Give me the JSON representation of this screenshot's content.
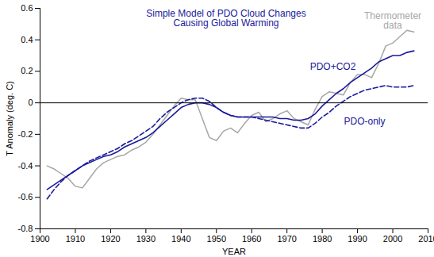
{
  "chart_data": {
    "type": "line",
    "title": "Simple Model of PDO Cloud Changes\nCausing Global Warming",
    "x_label": "YEAR",
    "y_label": "T Anomaly (deg. C)",
    "x": [
      1902,
      1904,
      1906,
      1908,
      1910,
      1912,
      1914,
      1916,
      1918,
      1920,
      1922,
      1924,
      1926,
      1928,
      1930,
      1932,
      1934,
      1936,
      1938,
      1940,
      1942,
      1944,
      1946,
      1948,
      1950,
      1952,
      1954,
      1956,
      1958,
      1960,
      1962,
      1964,
      1966,
      1968,
      1970,
      1972,
      1974,
      1976,
      1978,
      1980,
      1982,
      1984,
      1986,
      1988,
      1990,
      1992,
      1994,
      1996,
      1998,
      2000,
      2002,
      2004,
      2006
    ],
    "series": [
      {
        "name": "Thermometer data",
        "color": "#a6a6a6",
        "line_style": "solid",
        "values": [
          -0.4,
          -0.42,
          -0.45,
          -0.48,
          -0.53,
          -0.54,
          -0.48,
          -0.42,
          -0.38,
          -0.36,
          -0.34,
          -0.33,
          -0.3,
          -0.28,
          -0.25,
          -0.2,
          -0.14,
          -0.08,
          -0.02,
          0.03,
          0.02,
          0.02,
          -0.1,
          -0.22,
          -0.24,
          -0.18,
          -0.16,
          -0.19,
          -0.13,
          -0.08,
          -0.06,
          -0.12,
          -0.1,
          -0.07,
          -0.05,
          -0.1,
          -0.12,
          -0.14,
          -0.04,
          0.04,
          0.07,
          0.06,
          0.05,
          0.13,
          0.18,
          0.18,
          0.16,
          0.25,
          0.36,
          0.38,
          0.42,
          0.46,
          0.45
        ]
      },
      {
        "name": "PDO+CO2",
        "color": "#1a1a9c",
        "line_style": "solid",
        "values": [
          -0.55,
          -0.52,
          -0.49,
          -0.46,
          -0.43,
          -0.4,
          -0.38,
          -0.36,
          -0.34,
          -0.33,
          -0.31,
          -0.28,
          -0.26,
          -0.24,
          -0.22,
          -0.19,
          -0.15,
          -0.11,
          -0.07,
          -0.03,
          -0.01,
          0.0,
          0.0,
          -0.01,
          -0.03,
          -0.06,
          -0.08,
          -0.09,
          -0.09,
          -0.09,
          -0.09,
          -0.09,
          -0.09,
          -0.1,
          -0.1,
          -0.11,
          -0.11,
          -0.1,
          -0.07,
          -0.02,
          0.02,
          0.06,
          0.09,
          0.13,
          0.16,
          0.19,
          0.22,
          0.26,
          0.28,
          0.3,
          0.3,
          0.32,
          0.33
        ]
      },
      {
        "name": "PDO-only",
        "color": "#1a1a9c",
        "line_style": "dashed",
        "values": [
          -0.61,
          -0.55,
          -0.5,
          -0.46,
          -0.43,
          -0.4,
          -0.37,
          -0.35,
          -0.33,
          -0.31,
          -0.29,
          -0.26,
          -0.24,
          -0.21,
          -0.18,
          -0.15,
          -0.1,
          -0.06,
          -0.03,
          0.0,
          0.02,
          0.03,
          0.03,
          0.01,
          -0.03,
          -0.06,
          -0.08,
          -0.09,
          -0.09,
          -0.09,
          -0.1,
          -0.11,
          -0.12,
          -0.13,
          -0.14,
          -0.15,
          -0.16,
          -0.16,
          -0.13,
          -0.09,
          -0.06,
          -0.02,
          0.01,
          0.04,
          0.06,
          0.08,
          0.09,
          0.1,
          0.11,
          0.1,
          0.1,
          0.1,
          0.11
        ]
      }
    ],
    "annotations": [
      {
        "text": "Thermometer\ndata",
        "x": 2000,
        "y": 0.52,
        "color": "#a6a6a6"
      },
      {
        "text": "PDO+CO2",
        "x": 1983,
        "y": 0.23,
        "color": "#1a1a9c"
      },
      {
        "text": "PDO-only",
        "x": 1992,
        "y": -0.12,
        "color": "#1a1a9c"
      }
    ],
    "title_color": "#1a1a9c",
    "xlim": [
      1900,
      2010
    ],
    "xticks": [
      1900,
      1910,
      1920,
      1930,
      1940,
      1950,
      1960,
      1970,
      1980,
      1990,
      2000,
      2010
    ],
    "ylim": [
      -0.8,
      0.6
    ],
    "yticks": [
      -0.8,
      -0.6,
      -0.4,
      -0.2,
      0,
      0.2,
      0.4,
      0.6
    ],
    "grid": false,
    "legend": "none"
  }
}
